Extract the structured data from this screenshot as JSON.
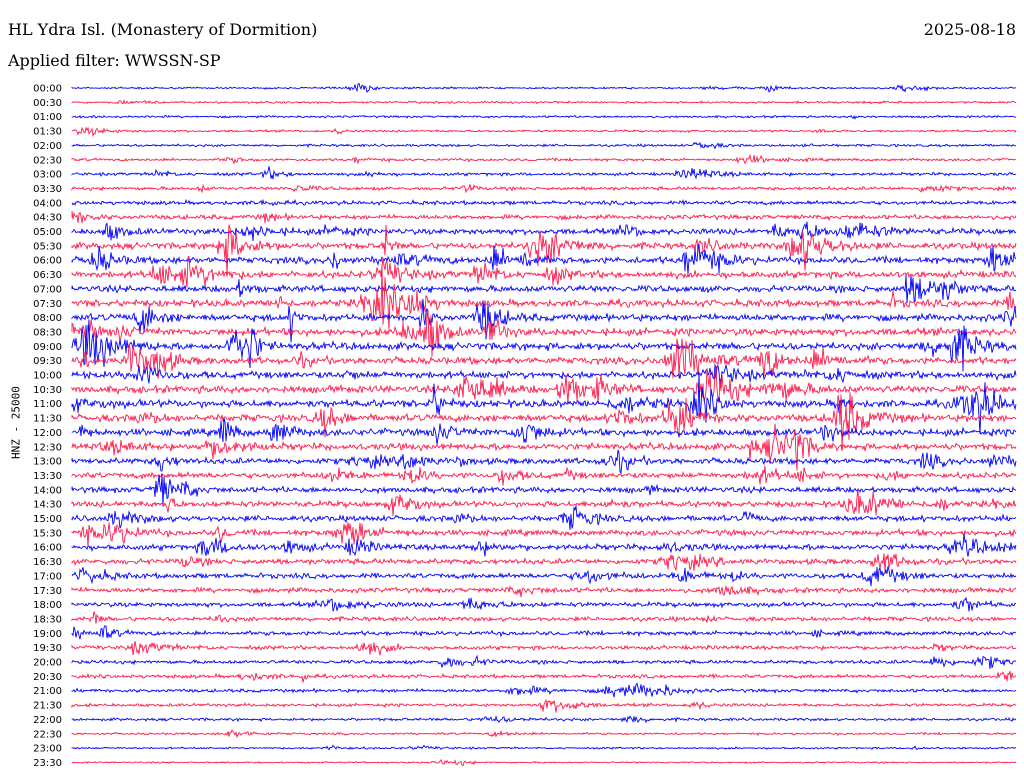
{
  "header": {
    "station_title": "HL Ydra Isl. (Monastery of Dormition)",
    "date": "2025-08-18",
    "filter_label": "Applied filter: WWSSN-SP"
  },
  "y_axis_label": "HNZ - 25000",
  "colors": {
    "trace_a": "#0000ff",
    "trace_b": "#ff1a4b"
  },
  "chart_data": {
    "type": "line",
    "description_note": "",
    "row_labels": [
      "00:00",
      "00:30",
      "01:00",
      "01:30",
      "02:00",
      "02:30",
      "03:00",
      "03:30",
      "04:00",
      "04:30",
      "05:00",
      "05:30",
      "06:00",
      "06:30",
      "07:00",
      "07:30",
      "08:00",
      "08:30",
      "09:00",
      "09:30",
      "10:00",
      "10:30",
      "11:00",
      "11:30",
      "12:00",
      "12:30",
      "13:00",
      "13:30",
      "14:00",
      "14:30",
      "15:00",
      "15:30",
      "16:00",
      "16:30",
      "17:00",
      "17:30",
      "18:00",
      "18:30",
      "19:00",
      "19:30",
      "20:00",
      "20:30",
      "21:00",
      "21:30",
      "22:00",
      "22:30",
      "23:00",
      "23:30"
    ],
    "noise_levels": [
      0.6,
      0.7,
      0.7,
      0.7,
      0.8,
      0.9,
      1.0,
      1.1,
      1.3,
      1.5,
      1.9,
      2.1,
      2.2,
      2.2,
      2.2,
      2.3,
      2.3,
      2.4,
      2.4,
      2.3,
      2.3,
      2.4,
      2.4,
      2.4,
      2.3,
      2.2,
      2.0,
      1.9,
      1.9,
      1.9,
      1.9,
      1.9,
      1.9,
      1.8,
      1.7,
      1.6,
      1.5,
      1.4,
      1.4,
      1.3,
      1.2,
      1.2,
      1.1,
      1.0,
      0.9,
      0.7,
      0.6,
      0.5
    ],
    "series_colors": [
      "trace_a",
      "trace_b"
    ]
  }
}
